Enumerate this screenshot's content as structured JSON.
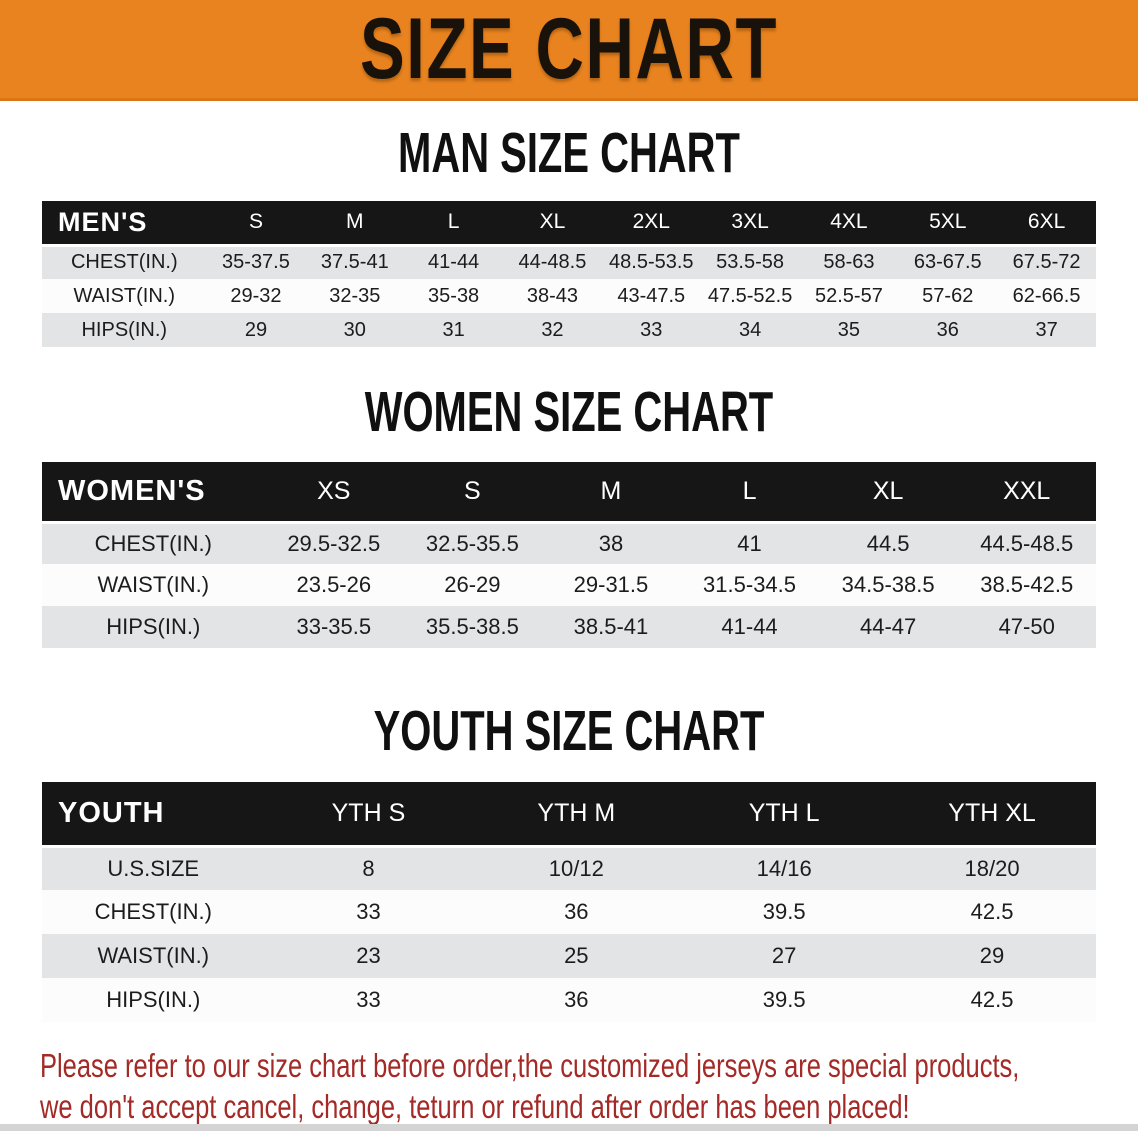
{
  "banner": {
    "title": "SIZE CHART",
    "background_color": "#E8831F",
    "text_color": "#18120a"
  },
  "sections": {
    "men": {
      "heading": "MAN SIZE CHART",
      "table": {
        "header": [
          "MEN'S",
          "S",
          "M",
          "L",
          "XL",
          "2XL",
          "3XL",
          "4XL",
          "5XL",
          "6XL"
        ],
        "rows": [
          [
            "CHEST(IN.)",
            "35-37.5",
            "37.5-41",
            "41-44",
            "44-48.5",
            "48.5-53.5",
            "53.5-58",
            "58-63",
            "63-67.5",
            "67.5-72"
          ],
          [
            "WAIST(IN.)",
            "29-32",
            "32-35",
            "35-38",
            "38-43",
            "43-47.5",
            "47.5-52.5",
            "52.5-57",
            "57-62",
            "62-66.5"
          ],
          [
            "HIPS(IN.)",
            "29",
            "30",
            "31",
            "32",
            "33",
            "34",
            "35",
            "36",
            "37"
          ]
        ]
      }
    },
    "women": {
      "heading": "WOMEN SIZE CHART",
      "table": {
        "header": [
          "WOMEN'S",
          "XS",
          "S",
          "M",
          "L",
          "XL",
          "XXL"
        ],
        "rows": [
          [
            "CHEST(IN.)",
            "29.5-32.5",
            "32.5-35.5",
            "38",
            "41",
            "44.5",
            "44.5-48.5"
          ],
          [
            "WAIST(IN.)",
            "23.5-26",
            "26-29",
            "29-31.5",
            "31.5-34.5",
            "34.5-38.5",
            "38.5-42.5"
          ],
          [
            "HIPS(IN.)",
            "33-35.5",
            "35.5-38.5",
            "38.5-41",
            "41-44",
            "44-47",
            "47-50"
          ]
        ]
      }
    },
    "youth": {
      "heading": "YOUTH SIZE CHART",
      "table": {
        "header": [
          "YOUTH",
          "YTH S",
          "YTH M",
          "YTH L",
          "YTH XL"
        ],
        "rows": [
          [
            "U.S.SIZE",
            "8",
            "10/12",
            "14/16",
            "18/20"
          ],
          [
            "CHEST(IN.)",
            "33",
            "36",
            "39.5",
            "42.5"
          ],
          [
            "WAIST(IN.)",
            "23",
            "25",
            "27",
            "29"
          ],
          [
            "HIPS(IN.)",
            "33",
            "36",
            "39.5",
            "42.5"
          ]
        ]
      }
    }
  },
  "disclaimer": {
    "line1": "Please refer to our size chart before order,the customized jerseys are special products,",
    "line2": "we don't accept cancel, change, teturn or refund after order has been placed!",
    "text_color": "#A32A26"
  },
  "colors": {
    "banner_orange": "#E8831F",
    "table_header_black": "#161616",
    "row_gray": "#E2E4E5",
    "row_white": "#FCFCFC",
    "disclaimer_red": "#A32A26",
    "bottom_strip_gray": "#d4d4d4"
  }
}
